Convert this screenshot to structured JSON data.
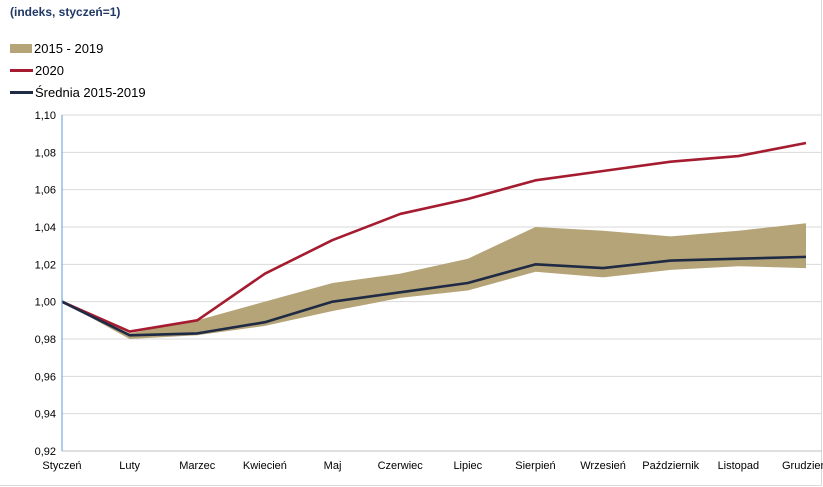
{
  "chart_data": {
    "type": "line",
    "title": "(indeks, styczeń=1)",
    "xlabel": "",
    "ylabel": "",
    "categories": [
      "Styczeń",
      "Luty",
      "Marzec",
      "Kwiecień",
      "Maj",
      "Czerwiec",
      "Lipiec",
      "Sierpień",
      "Wrzesień",
      "Październik",
      "Listopad",
      "Grudzień"
    ],
    "ylim": [
      0.92,
      1.1
    ],
    "yticks": [
      "0,92",
      "0,94",
      "0,96",
      "0,98",
      "1,00",
      "1,02",
      "1,04",
      "1,06",
      "1,08",
      "1,10"
    ],
    "ytick_values": [
      0.92,
      0.94,
      0.96,
      0.98,
      1.0,
      1.02,
      1.04,
      1.06,
      1.08,
      1.1
    ],
    "grid": true,
    "legend_position": "top-left",
    "band": {
      "name": "2015 - 2019",
      "color": "#b5a477",
      "upper": [
        1.0,
        0.983,
        0.99,
        1.0,
        1.01,
        1.015,
        1.023,
        1.04,
        1.038,
        1.035,
        1.038,
        1.042
      ],
      "lower": [
        1.0,
        0.98,
        0.982,
        0.987,
        0.995,
        1.002,
        1.006,
        1.016,
        1.013,
        1.017,
        1.019,
        1.018
      ]
    },
    "series": [
      {
        "name": "2020",
        "color": "#a51c30",
        "values": [
          1.0,
          0.984,
          0.99,
          1.015,
          1.033,
          1.047,
          1.055,
          1.065,
          1.07,
          1.075,
          1.078,
          1.085
        ]
      },
      {
        "name": "Średnia 2015-2019",
        "color": "#1f2a44",
        "values": [
          1.0,
          0.982,
          0.983,
          0.989,
          1.0,
          1.005,
          1.01,
          1.02,
          1.018,
          1.022,
          1.023,
          1.024
        ]
      }
    ]
  }
}
